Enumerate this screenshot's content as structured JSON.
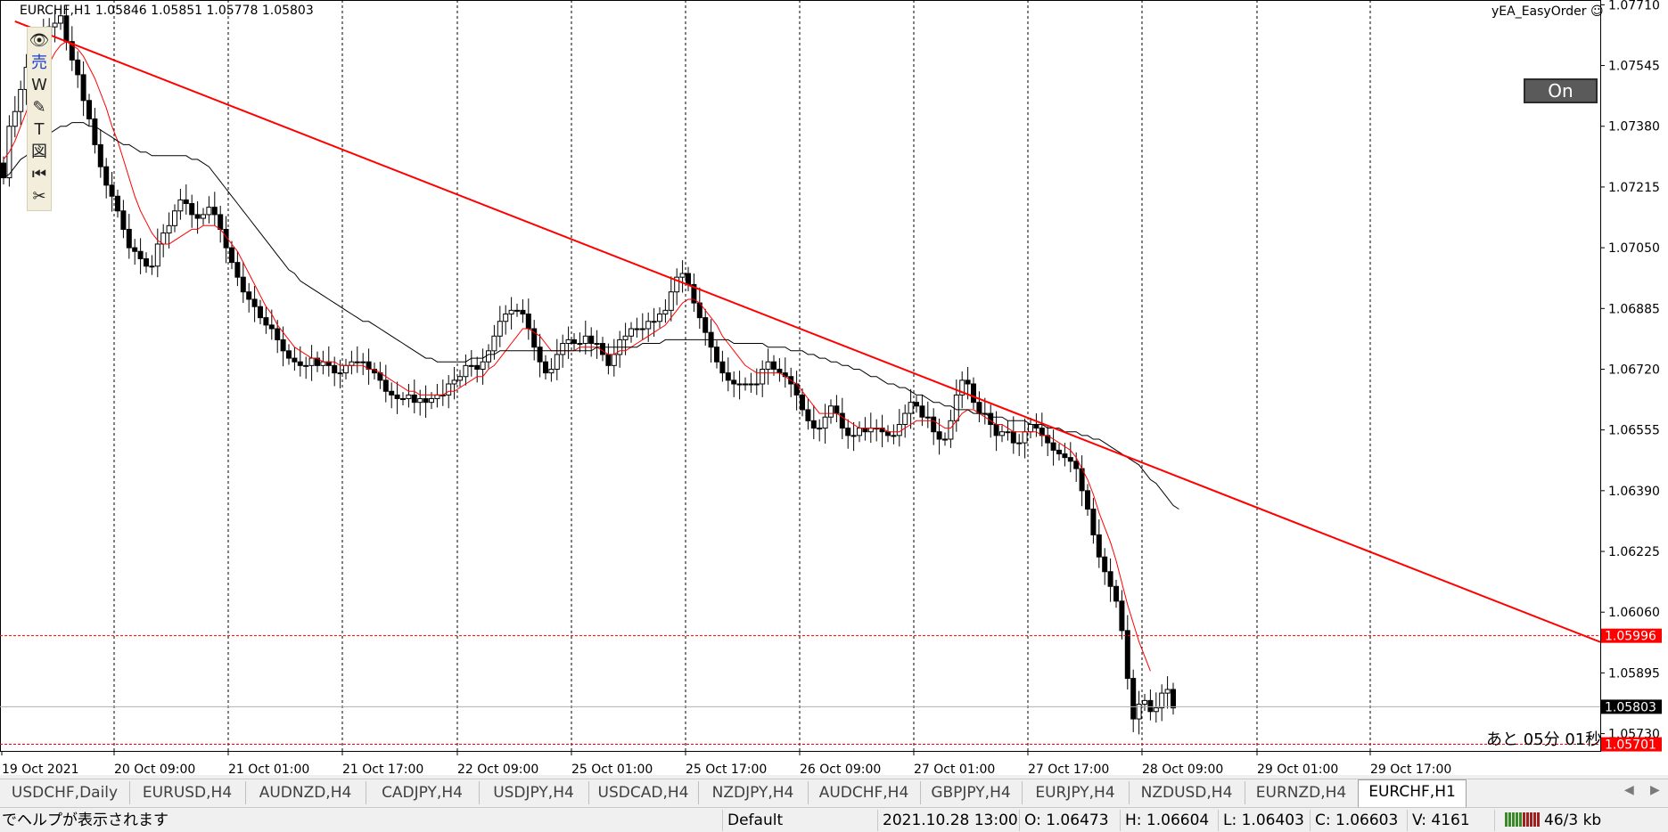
{
  "window": {
    "symbol_info": "EURCHF,H1  1.05846 1.05851 1.05778 1.05803",
    "ea_name": "yEA_EasyOrder",
    "on_button": "On",
    "timer": "あと 05分 01秒"
  },
  "toolbar": {
    "tools": [
      {
        "icon": "eye-icon",
        "glyph": "👁"
      },
      {
        "icon": "sell-icon",
        "glyph": "売"
      },
      {
        "icon": "w-icon",
        "glyph": "W"
      },
      {
        "icon": "pencil-icon",
        "glyph": "✎"
      },
      {
        "icon": "text-icon",
        "glyph": "T"
      },
      {
        "icon": "screenshot-icon",
        "glyph": "図"
      },
      {
        "icon": "rewind-icon",
        "glyph": "⏮"
      },
      {
        "icon": "scissors-icon",
        "glyph": "✂"
      }
    ]
  },
  "chart_data": {
    "type": "candlestick",
    "symbol": "EURCHF",
    "timeframe": "H1",
    "y_ticks": [
      "1.07710",
      "1.07545",
      "1.07380",
      "1.07215",
      "1.07050",
      "1.06885",
      "1.06720",
      "1.06555",
      "1.06390",
      "1.06225",
      "1.06060",
      "1.05895",
      "1.05730"
    ],
    "ylim": [
      1.05683,
      1.07723
    ],
    "x_labels": [
      "19 Oct 2021",
      "20 Oct 09:00",
      "21 Oct 01:00",
      "21 Oct 17:00",
      "22 Oct 09:00",
      "25 Oct 01:00",
      "25 Oct 17:00",
      "26 Oct 09:00",
      "27 Oct 01:00",
      "27 Oct 17:00",
      "28 Oct 09:00",
      "29 Oct 01:00",
      "29 Oct 17:00"
    ],
    "price_markers": [
      {
        "label": "1.05996",
        "value": 1.05996,
        "color": "#ff0000"
      },
      {
        "label": "1.05803",
        "value": 1.05803,
        "color": "#000000"
      },
      {
        "label": "1.05701",
        "value": 1.05701,
        "color": "#ff0000"
      }
    ],
    "trendline": {
      "from": {
        "bar": 2,
        "price": 1.07665
      },
      "to": {
        "bar": 222,
        "price": 1.0633
      },
      "color": "#ff0000"
    },
    "series": [
      {
        "name": "closes",
        "values": [
          1.0724,
          1.0738,
          1.0742,
          1.0748,
          1.0754,
          1.0752,
          1.0756,
          1.0763,
          1.0765,
          1.0766,
          1.0768,
          1.0761,
          1.0756,
          1.0752,
          1.0745,
          1.074,
          1.0733,
          1.0727,
          1.0722,
          1.0719,
          1.0715,
          1.071,
          1.0705,
          1.0704,
          1.0702,
          1.07,
          1.07,
          1.0706,
          1.0709,
          1.0711,
          1.0715,
          1.0718,
          1.0717,
          1.0714,
          1.0713,
          1.0714,
          1.0716,
          1.0714,
          1.071,
          1.0705,
          1.0701,
          1.0697,
          1.0693,
          1.0691,
          1.0689,
          1.0686,
          1.0684,
          1.0683,
          1.068,
          1.0677,
          1.0675,
          1.0674,
          1.0673,
          1.0673,
          1.0675,
          1.0673,
          1.0674,
          1.0673,
          1.0671,
          1.0671,
          1.0673,
          1.0674,
          1.0674,
          1.0674,
          1.0672,
          1.0671,
          1.0669,
          1.0666,
          1.0665,
          1.0664,
          1.0664,
          1.0665,
          1.0663,
          1.0664,
          1.0663,
          1.0664,
          1.0665,
          1.0665,
          1.0668,
          1.0669,
          1.067,
          1.0673,
          1.0673,
          1.0672,
          1.0674,
          1.0677,
          1.0681,
          1.0685,
          1.0687,
          1.0688,
          1.0688,
          1.0687,
          1.0683,
          1.0678,
          1.0674,
          1.0671,
          1.0672,
          1.0676,
          1.0679,
          1.068,
          1.0679,
          1.0679,
          1.0681,
          1.0679,
          1.0679,
          1.0676,
          1.0673,
          1.0676,
          1.068,
          1.0681,
          1.0683,
          1.0683,
          1.0683,
          1.0685,
          1.0685,
          1.0687,
          1.0688,
          1.0693,
          1.0697,
          1.0698,
          1.0695,
          1.069,
          1.0686,
          1.0682,
          1.0678,
          1.0674,
          1.0671,
          1.0669,
          1.0668,
          1.0668,
          1.0668,
          1.0668,
          1.0668,
          1.0672,
          1.0674,
          1.0672,
          1.0671,
          1.067,
          1.0668,
          1.0665,
          1.0661,
          1.0658,
          1.0656,
          1.0656,
          1.0659,
          1.0662,
          1.066,
          1.0656,
          1.0654,
          1.0654,
          1.0656,
          1.0655,
          1.0656,
          1.0656,
          1.0655,
          1.0654,
          1.0654,
          1.0657,
          1.066,
          1.0663,
          1.0662,
          1.0659,
          1.0659,
          1.0655,
          1.0653,
          1.0653,
          1.0658,
          1.0665,
          1.0669,
          1.0668,
          1.0663,
          1.066,
          1.066,
          1.0657,
          1.0654,
          1.0655,
          1.0655,
          1.0652,
          1.0652,
          1.0655,
          1.0657,
          1.0656,
          1.0654,
          1.0652,
          1.065,
          1.0649,
          1.0648,
          1.0647,
          1.0645,
          1.0639,
          1.0634,
          1.0627,
          1.0621,
          1.0617,
          1.0613,
          1.0609,
          1.0601,
          1.0588,
          1.0577,
          1.0581,
          1.0582,
          1.0579,
          1.058,
          1.0584,
          1.0585,
          1.058
        ]
      },
      {
        "name": "fast_ma",
        "color": "#ff0000",
        "values": [
          1.0729,
          1.0731,
          1.0734,
          1.0738,
          1.0742,
          1.0746,
          1.0749,
          1.0752,
          1.0755,
          1.0758,
          1.076,
          1.0761,
          1.076,
          1.0759,
          1.0757,
          1.0754,
          1.0751,
          1.0747,
          1.0743,
          1.0738,
          1.0734,
          1.0729,
          1.0724,
          1.0719,
          1.0715,
          1.0712,
          1.0709,
          1.0707,
          1.0706,
          1.0706,
          1.0707,
          1.0708,
          1.0709,
          1.071,
          1.071,
          1.0711,
          1.0711,
          1.0711,
          1.071,
          1.0708,
          1.0706,
          1.0704,
          1.0701,
          1.0698,
          1.0695,
          1.0692,
          1.0689,
          1.0687,
          1.0684,
          1.0682,
          1.068,
          1.0678,
          1.0677,
          1.0676,
          1.0675,
          1.0675,
          1.0674,
          1.0674,
          1.0674,
          1.0673,
          1.0673,
          1.0673,
          1.0673,
          1.0673,
          1.0672,
          1.0672,
          1.0671,
          1.067,
          1.0669,
          1.0668,
          1.0667,
          1.0666,
          1.0666,
          1.0665,
          1.0665,
          1.0665,
          1.0665,
          1.0665,
          1.0666,
          1.0666,
          1.0667,
          1.0668,
          1.0669,
          1.067,
          1.067,
          1.0672,
          1.0673,
          1.0675,
          1.0677,
          1.0679,
          1.0681,
          1.0683,
          1.0683,
          1.0682,
          1.0681,
          1.0679,
          1.0677,
          1.0677,
          1.0677,
          1.0677,
          1.0677,
          1.0678,
          1.0678,
          1.0678,
          1.0678,
          1.0677,
          1.0676,
          1.0676,
          1.0677,
          1.0677,
          1.0678,
          1.0679,
          1.068,
          1.0681,
          1.0682,
          1.0683,
          1.0684,
          1.0686,
          1.0688,
          1.069,
          1.0691,
          1.0691,
          1.069,
          1.0688,
          1.0686,
          1.0684,
          1.0681,
          1.0679,
          1.0677,
          1.0675,
          1.0673,
          1.0672,
          1.0671,
          1.0671,
          1.0671,
          1.0671,
          1.0671,
          1.067,
          1.0669,
          1.0668,
          1.0666,
          1.0664,
          1.0662,
          1.066,
          1.066,
          1.066,
          1.066,
          1.0659,
          1.0658,
          1.0657,
          1.0656,
          1.0656,
          1.0656,
          1.0656,
          1.0656,
          1.0655,
          1.0655,
          1.0655,
          1.0656,
          1.0657,
          1.0658,
          1.0658,
          1.0658,
          1.0658,
          1.0657,
          1.0656,
          1.0656,
          1.0658,
          1.066,
          1.0661,
          1.0661,
          1.066,
          1.0659,
          1.0658,
          1.0657,
          1.0657,
          1.0656,
          1.0655,
          1.0655,
          1.0655,
          1.0655,
          1.0655,
          1.0654,
          1.0654,
          1.0653,
          1.0652,
          1.0651,
          1.065,
          1.0648,
          1.0645,
          1.0642,
          1.0638,
          1.0633,
          1.0629,
          1.0625,
          1.062,
          1.0614,
          1.0608,
          1.0603,
          1.0598,
          1.0594,
          1.059
        ]
      },
      {
        "name": "slow_ma",
        "color": "#000000",
        "values": [
          1.0724,
          1.0725,
          1.0727,
          1.0729,
          1.073,
          1.0732,
          1.0734,
          1.0735,
          1.0736,
          1.0737,
          1.0738,
          1.0738,
          1.0739,
          1.0739,
          1.0739,
          1.0738,
          1.0738,
          1.0737,
          1.0736,
          1.0735,
          1.0734,
          1.0733,
          1.0733,
          1.0732,
          1.0731,
          1.0731,
          1.073,
          1.073,
          1.073,
          1.073,
          1.073,
          1.073,
          1.073,
          1.0729,
          1.0729,
          1.0728,
          1.0727,
          1.0725,
          1.0723,
          1.0721,
          1.0719,
          1.0717,
          1.0715,
          1.0713,
          1.0711,
          1.0709,
          1.0707,
          1.0705,
          1.0703,
          1.0701,
          1.0699,
          1.0698,
          1.0696,
          1.0695,
          1.0694,
          1.0693,
          1.0692,
          1.0691,
          1.069,
          1.0689,
          1.0688,
          1.0687,
          1.0686,
          1.0685,
          1.0685,
          1.0684,
          1.0683,
          1.0682,
          1.0681,
          1.068,
          1.0679,
          1.0678,
          1.0677,
          1.0676,
          1.0675,
          1.0675,
          1.0674,
          1.0674,
          1.0674,
          1.0674,
          1.0674,
          1.0674,
          1.0675,
          1.0675,
          1.0675,
          1.0676,
          1.0676,
          1.0677,
          1.0677,
          1.0677,
          1.0677,
          1.0677,
          1.0677,
          1.0677,
          1.0677,
          1.0677,
          1.0677,
          1.0677,
          1.0677,
          1.0677,
          1.0677,
          1.0677,
          1.0677,
          1.0677,
          1.0678,
          1.0678,
          1.0678,
          1.0678,
          1.0678,
          1.0678,
          1.0678,
          1.0678,
          1.0679,
          1.0679,
          1.0679,
          1.0679,
          1.068,
          1.068,
          1.068,
          1.068,
          1.068,
          1.068,
          1.068,
          1.068,
          1.068,
          1.068,
          1.068,
          1.068,
          1.0679,
          1.0679,
          1.0679,
          1.0679,
          1.0679,
          1.0679,
          1.0678,
          1.0678,
          1.0678,
          1.0678,
          1.0677,
          1.0677,
          1.0677,
          1.0676,
          1.0676,
          1.0675,
          1.0675,
          1.0674,
          1.0674,
          1.0673,
          1.0673,
          1.0672,
          1.0672,
          1.0671,
          1.067,
          1.067,
          1.0669,
          1.0668,
          1.0668,
          1.0667,
          1.0667,
          1.0666,
          1.0665,
          1.0665,
          1.0664,
          1.0663,
          1.0663,
          1.0662,
          1.0662,
          1.0661,
          1.0661,
          1.0661,
          1.066,
          1.066,
          1.066,
          1.0659,
          1.0659,
          1.0659,
          1.0658,
          1.0658,
          1.0658,
          1.0658,
          1.0657,
          1.0657,
          1.0657,
          1.0656,
          1.0656,
          1.0656,
          1.0655,
          1.0655,
          1.0655,
          1.0654,
          1.0654,
          1.0653,
          1.0653,
          1.0652,
          1.0651,
          1.065,
          1.0649,
          1.0648,
          1.0647,
          1.0646,
          1.0644,
          1.0642,
          1.0641,
          1.0639,
          1.0637,
          1.0635,
          1.0634
        ]
      }
    ]
  },
  "tabs": [
    "USDCHF,Daily",
    "EURUSD,H4",
    "AUDNZD,H4",
    "CADJPY,H4",
    "USDJPY,H4",
    "USDCAD,H4",
    "NZDJPY,H4",
    "AUDCHF,H4",
    "GBPJPY,H4",
    "EURJPY,H4",
    "NZDUSD,H4",
    "EURNZD,H4",
    "EURCHF,H1"
  ],
  "active_tab": "EURCHF,H1",
  "status": {
    "help": "でヘルプが表示されます",
    "profile": "Default",
    "datetime": "2021.10.28 13:00",
    "open": "O: 1.06473",
    "high": "H: 1.06604",
    "low": "L: 1.06403",
    "close": "C: 1.06603",
    "volume": "V: 4161",
    "traffic": "46/3 kb"
  }
}
